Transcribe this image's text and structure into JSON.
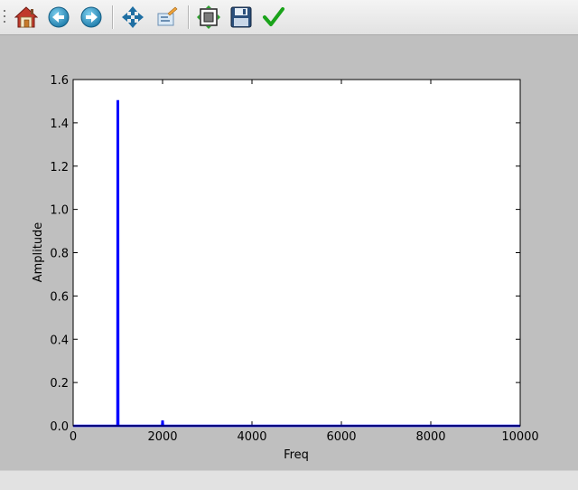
{
  "toolbar": {
    "buttons": [
      {
        "name": "home",
        "icon": "home-icon"
      },
      {
        "name": "back",
        "icon": "back-arrow-icon"
      },
      {
        "name": "forward",
        "icon": "forward-arrow-icon"
      },
      {
        "name": "pan",
        "icon": "pan-move-icon"
      },
      {
        "name": "zoom",
        "icon": "zoom-rect-icon"
      },
      {
        "name": "subplots",
        "icon": "subplots-config-icon"
      },
      {
        "name": "save",
        "icon": "floppy-save-icon"
      },
      {
        "name": "edit-axes",
        "icon": "checkmark-icon"
      }
    ]
  },
  "chart_data": {
    "type": "line",
    "title": "",
    "xlabel": "Freq",
    "ylabel": "Amplitude",
    "xlim": [
      0,
      10000
    ],
    "ylim": [
      0,
      1.6
    ],
    "x_ticks": [
      0,
      2000,
      4000,
      6000,
      8000,
      10000
    ],
    "x_tick_labels": [
      "0",
      "2000",
      "4000",
      "6000",
      "8000",
      "10000"
    ],
    "y_ticks": [
      0,
      0.2,
      0.4,
      0.6,
      0.8,
      1.0,
      1.2,
      1.4,
      1.6
    ],
    "y_tick_labels": [
      "0.0",
      "0.2",
      "0.4",
      "0.6",
      "0.8",
      "1.0",
      "1.2",
      "1.4",
      "1.6"
    ],
    "grid": false,
    "series": [
      {
        "color": "#0000ff",
        "x": [
          0,
          990,
          995,
          1000,
          1005,
          1010,
          1990,
          1995,
          2000,
          2005,
          2010,
          10000
        ],
        "y": [
          0,
          0,
          1.5,
          1.5,
          1.5,
          0,
          0,
          0.02,
          0.02,
          0.02,
          0,
          0
        ]
      }
    ]
  }
}
